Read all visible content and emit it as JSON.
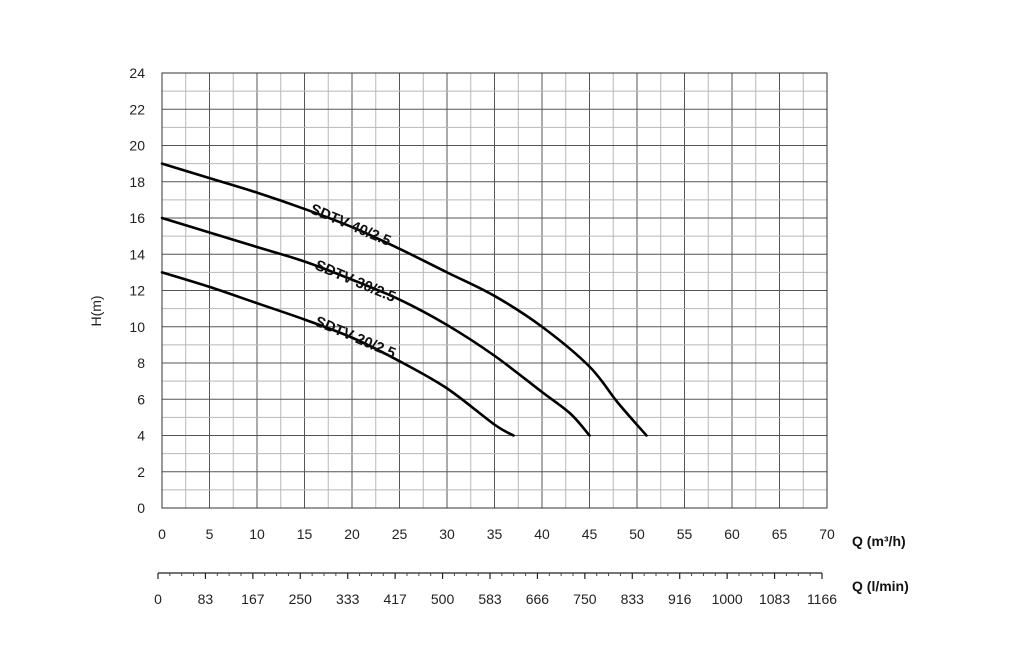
{
  "chart_data": {
    "type": "line",
    "ylabel": "H(m)",
    "xlabel": "Q (m³/h)",
    "xlabel2": "Q (l/min)",
    "xlim": [
      0,
      70
    ],
    "ylim": [
      0,
      24
    ],
    "x_ticks": [
      0,
      5,
      10,
      15,
      20,
      25,
      30,
      35,
      40,
      45,
      50,
      55,
      60,
      65,
      70
    ],
    "y_ticks": [
      0,
      2,
      4,
      6,
      8,
      10,
      12,
      14,
      16,
      18,
      20,
      22,
      24
    ],
    "x2_ticks": [
      "0",
      "83",
      "167",
      "250",
      "333",
      "417",
      "500",
      "583",
      "666",
      "750",
      "833",
      "916",
      "1000",
      "1083",
      "1166"
    ],
    "grid": true,
    "series": [
      {
        "name": "SDTV 40/2.5",
        "x": [
          0,
          5,
          10,
          15,
          20,
          25,
          30,
          35,
          40,
          45,
          48,
          51
        ],
        "y": [
          19,
          18.2,
          17.4,
          16.5,
          15.5,
          14.3,
          13,
          11.7,
          10,
          7.8,
          5.8,
          4
        ]
      },
      {
        "name": "SDTV 30/2.5",
        "x": [
          0,
          5,
          10,
          15,
          20,
          25,
          30,
          35,
          40,
          43,
          45
        ],
        "y": [
          16,
          15.2,
          14.4,
          13.6,
          12.6,
          11.5,
          10.1,
          8.4,
          6.4,
          5.2,
          4
        ]
      },
      {
        "name": "SDTV 20/2.5",
        "x": [
          0,
          5,
          10,
          15,
          20,
          25,
          30,
          35,
          37
        ],
        "y": [
          13,
          12.2,
          11.3,
          10.4,
          9.4,
          8.1,
          6.6,
          4.6,
          4
        ]
      }
    ]
  }
}
